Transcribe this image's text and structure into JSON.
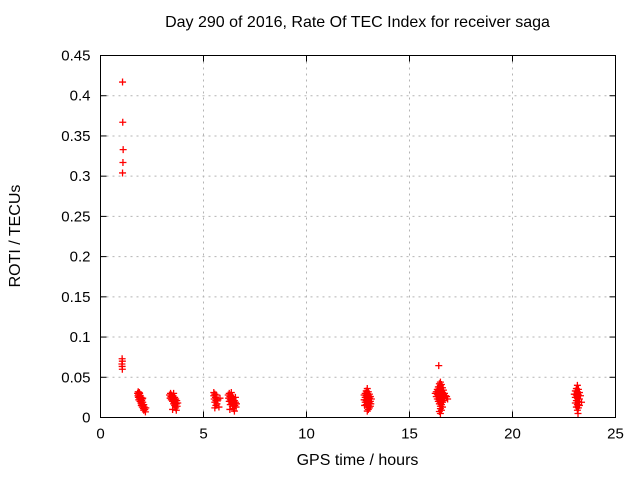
{
  "figure": {
    "background": "#ffffff",
    "axis_color": "#000000",
    "grid_color": "#b4b4b4"
  },
  "chart_data": {
    "type": "scatter",
    "title": "Day 290 of 2016, Rate Of TEC Index for receiver saga",
    "xlabel": "GPS time / hours",
    "ylabel": "ROTI / TECUs",
    "xlim": [
      0,
      25
    ],
    "ylim": [
      0,
      0.45
    ],
    "xticks": [
      0,
      5,
      10,
      15,
      20,
      25
    ],
    "xtick_labels": [
      "0",
      "5",
      "10",
      "15",
      "20",
      "25"
    ],
    "yticks": [
      0,
      0.05,
      0.1,
      0.15,
      0.2,
      0.25,
      0.3,
      0.35,
      0.4,
      0.45
    ],
    "ytick_labels": [
      "0",
      "0.05",
      "0.1",
      "0.15",
      "0.2",
      "0.25",
      "0.3",
      "0.35",
      "0.4",
      "0.45"
    ],
    "grid": true,
    "legend_position": "none",
    "series": [
      {
        "name": "ROTI",
        "marker": "plus",
        "color": "#ff0000",
        "points": [
          [
            1.07,
            0.417
          ],
          [
            1.08,
            0.367
          ],
          [
            1.1,
            0.333
          ],
          [
            1.09,
            0.317
          ],
          [
            1.07,
            0.304
          ],
          [
            1.05,
            0.073
          ],
          [
            1.06,
            0.07
          ],
          [
            1.04,
            0.0665
          ],
          [
            1.05,
            0.0635
          ],
          [
            1.06,
            0.06
          ],
          [
            1.8,
            0.03
          ],
          [
            1.82,
            0.027
          ],
          [
            1.83,
            0.032
          ],
          [
            1.84,
            0.025
          ],
          [
            1.85,
            0.029
          ],
          [
            1.86,
            0.022
          ],
          [
            1.88,
            0.026
          ],
          [
            1.88,
            0.031
          ],
          [
            1.9,
            0.03
          ],
          [
            1.9,
            0.024
          ],
          [
            1.92,
            0.02
          ],
          [
            1.93,
            0.027
          ],
          [
            1.95,
            0.022
          ],
          [
            1.96,
            0.018
          ],
          [
            1.97,
            0.025
          ],
          [
            1.98,
            0.015
          ],
          [
            2.0,
            0.021
          ],
          [
            2.0,
            0.017
          ],
          [
            2.02,
            0.023
          ],
          [
            2.03,
            0.013
          ],
          [
            2.05,
            0.019
          ],
          [
            2.05,
            0.024
          ],
          [
            2.06,
            0.015
          ],
          [
            2.08,
            0.011
          ],
          [
            2.1,
            0.016
          ],
          [
            2.1,
            0.009
          ],
          [
            2.12,
            0.013
          ],
          [
            2.15,
            0.01
          ],
          [
            2.18,
            0.007
          ],
          [
            2.2,
            0.012
          ],
          [
            3.35,
            0.028
          ],
          [
            3.38,
            0.024
          ],
          [
            3.4,
            0.03
          ],
          [
            3.42,
            0.026
          ],
          [
            3.44,
            0.022
          ],
          [
            3.45,
            0.028
          ],
          [
            3.48,
            0.025
          ],
          [
            3.5,
            0.02
          ],
          [
            3.5,
            0.01
          ],
          [
            3.52,
            0.027
          ],
          [
            3.54,
            0.023
          ],
          [
            3.55,
            0.017
          ],
          [
            3.55,
            0.03
          ],
          [
            3.58,
            0.021
          ],
          [
            3.6,
            0.025
          ],
          [
            3.6,
            0.015
          ],
          [
            3.62,
            0.019
          ],
          [
            3.65,
            0.023
          ],
          [
            3.65,
            0.012
          ],
          [
            3.68,
            0.017
          ],
          [
            3.68,
            0.009
          ],
          [
            3.7,
            0.021
          ],
          [
            3.72,
            0.014
          ],
          [
            3.75,
            0.018
          ],
          [
            5.5,
            0.031
          ],
          [
            5.5,
            0.027
          ],
          [
            5.52,
            0.023
          ],
          [
            5.55,
            0.029
          ],
          [
            5.55,
            0.019
          ],
          [
            5.55,
            0.012
          ],
          [
            5.58,
            0.025
          ],
          [
            5.6,
            0.021
          ],
          [
            5.6,
            0.015
          ],
          [
            5.62,
            0.028
          ],
          [
            5.65,
            0.017
          ],
          [
            5.7,
            0.022
          ],
          [
            5.75,
            0.013
          ],
          [
            5.8,
            0.024
          ],
          [
            6.2,
            0.028
          ],
          [
            6.22,
            0.024
          ],
          [
            6.25,
            0.03
          ],
          [
            6.25,
            0.02
          ],
          [
            6.28,
            0.026
          ],
          [
            6.28,
            0.01
          ],
          [
            6.3,
            0.022
          ],
          [
            6.3,
            0.016
          ],
          [
            6.32,
            0.028
          ],
          [
            6.35,
            0.024
          ],
          [
            6.35,
            0.018
          ],
          [
            6.35,
            0.031
          ],
          [
            6.38,
            0.021
          ],
          [
            6.4,
            0.026
          ],
          [
            6.4,
            0.014
          ],
          [
            6.42,
            0.019
          ],
          [
            6.45,
            0.023
          ],
          [
            6.45,
            0.011
          ],
          [
            6.48,
            0.017
          ],
          [
            6.5,
            0.021
          ],
          [
            6.5,
            0.008
          ],
          [
            6.52,
            0.015
          ],
          [
            6.55,
            0.019
          ],
          [
            6.55,
            0.025
          ],
          [
            6.58,
            0.013
          ],
          [
            6.6,
            0.017
          ],
          [
            12.95,
            0.036
          ],
          [
            12.9,
            0.033
          ],
          [
            13.0,
            0.032
          ],
          [
            12.85,
            0.03
          ],
          [
            12.95,
            0.03
          ],
          [
            13.05,
            0.029
          ],
          [
            12.8,
            0.028
          ],
          [
            12.9,
            0.027
          ],
          [
            13.0,
            0.027
          ],
          [
            13.1,
            0.026
          ],
          [
            12.85,
            0.025
          ],
          [
            12.95,
            0.024
          ],
          [
            13.05,
            0.024
          ],
          [
            13.15,
            0.023
          ],
          [
            12.8,
            0.022
          ],
          [
            12.9,
            0.021
          ],
          [
            13.0,
            0.021
          ],
          [
            13.1,
            0.02
          ],
          [
            12.85,
            0.019
          ],
          [
            12.95,
            0.018
          ],
          [
            13.05,
            0.018
          ],
          [
            12.82,
            0.015
          ],
          [
            12.9,
            0.016
          ],
          [
            13.0,
            0.015
          ],
          [
            13.1,
            0.014
          ],
          [
            12.95,
            0.013
          ],
          [
            13.05,
            0.012
          ],
          [
            13.12,
            0.017
          ],
          [
            13.0,
            0.01
          ],
          [
            12.95,
            0.008
          ],
          [
            16.42,
            0.0645
          ],
          [
            16.5,
            0.044
          ],
          [
            16.45,
            0.042
          ],
          [
            16.5,
            0.04
          ],
          [
            16.55,
            0.041
          ],
          [
            16.4,
            0.038
          ],
          [
            16.5,
            0.038
          ],
          [
            16.6,
            0.037
          ],
          [
            16.35,
            0.035
          ],
          [
            16.45,
            0.035
          ],
          [
            16.55,
            0.034
          ],
          [
            16.65,
            0.034
          ],
          [
            16.3,
            0.032
          ],
          [
            16.4,
            0.032
          ],
          [
            16.5,
            0.031
          ],
          [
            16.6,
            0.031
          ],
          [
            16.7,
            0.03
          ],
          [
            16.25,
            0.03
          ],
          [
            16.35,
            0.029
          ],
          [
            16.45,
            0.029
          ],
          [
            16.55,
            0.028
          ],
          [
            16.65,
            0.028
          ],
          [
            16.75,
            0.027
          ],
          [
            16.3,
            0.026
          ],
          [
            16.4,
            0.026
          ],
          [
            16.8,
            0.026
          ],
          [
            16.5,
            0.025
          ],
          [
            16.6,
            0.025
          ],
          [
            16.7,
            0.024
          ],
          [
            16.35,
            0.023
          ],
          [
            16.85,
            0.023
          ],
          [
            16.45,
            0.022
          ],
          [
            16.55,
            0.022
          ],
          [
            16.65,
            0.021
          ],
          [
            16.4,
            0.02
          ],
          [
            16.5,
            0.019
          ],
          [
            16.6,
            0.019
          ],
          [
            16.45,
            0.017
          ],
          [
            16.55,
            0.016
          ],
          [
            16.5,
            0.014
          ],
          [
            16.6,
            0.013
          ],
          [
            16.5,
            0.011
          ],
          [
            16.55,
            0.009
          ],
          [
            16.45,
            0.0075
          ],
          [
            16.5,
            0.005
          ],
          [
            23.15,
            0.04
          ],
          [
            23.1,
            0.036
          ],
          [
            23.2,
            0.035
          ],
          [
            23.05,
            0.033
          ],
          [
            23.15,
            0.032
          ],
          [
            23.25,
            0.031
          ],
          [
            23.0,
            0.029
          ],
          [
            23.1,
            0.028
          ],
          [
            23.2,
            0.028
          ],
          [
            23.3,
            0.027
          ],
          [
            23.05,
            0.025
          ],
          [
            23.15,
            0.024
          ],
          [
            23.25,
            0.023
          ],
          [
            23.1,
            0.021
          ],
          [
            23.2,
            0.02
          ],
          [
            23.35,
            0.019
          ],
          [
            23.05,
            0.018
          ],
          [
            23.15,
            0.016
          ],
          [
            23.25,
            0.015
          ],
          [
            23.1,
            0.013
          ],
          [
            23.2,
            0.012
          ],
          [
            23.15,
            0.009
          ],
          [
            23.18,
            0.005
          ]
        ]
      }
    ]
  }
}
